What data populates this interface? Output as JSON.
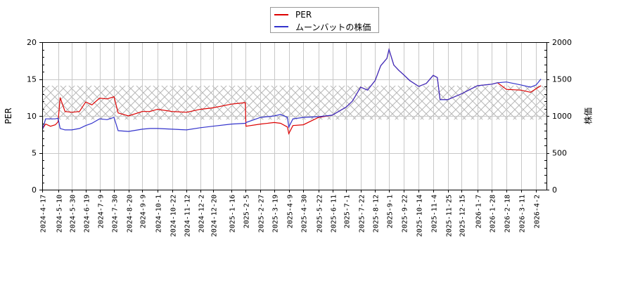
{
  "chart_data": {
    "type": "line",
    "title": "",
    "xlabel": "",
    "ylabel_left": "PER",
    "ylabel_right": "株価",
    "ylim_left": [
      0,
      20
    ],
    "ylim_right": [
      0,
      2000
    ],
    "yticks_left": [
      "0",
      "5",
      "10",
      "15",
      "20"
    ],
    "yticks_right": [
      "0",
      "500",
      "1000",
      "1500",
      "2000"
    ],
    "grid": true,
    "legend_position": "top-center",
    "shaded_band": {
      "left_axis_range": [
        9.5,
        14.1
      ],
      "pattern": "crosshatch",
      "color": "#c0c0c0"
    },
    "x_tick_labels": [
      "2024-4-17",
      "2024-5-10",
      "2024-5-30",
      "2024-6-19",
      "2024-7-9",
      "2024-7-30",
      "2024-8-20",
      "2024-9-9",
      "2024-10-1",
      "2024-10-22",
      "2024-11-12",
      "2024-12-2",
      "2024-12-20",
      "2025-1-16",
      "2025-2-5",
      "2025-2-27",
      "2025-3-19",
      "2025-4-9",
      "2025-4-30",
      "2025-5-22",
      "2025-6-11",
      "2025-7-1",
      "2025-7-22",
      "2025-8-12",
      "2025-9-1",
      "2025-9-22",
      "2025-10-14",
      "2025-11-4",
      "2025-11-25",
      "2025-12-15",
      "2026-1-7",
      "2026-1-28",
      "2026-2-18",
      "2026-3-11",
      "2026-4-2"
    ],
    "series": [
      {
        "name": "PER",
        "color": "#dd0000",
        "axis": "left",
        "x": [
          "2024-4-17",
          "2024-4-22",
          "2024-4-29",
          "2024-5-6",
          "2024-5-10",
          "2024-5-13",
          "2024-5-20",
          "2024-5-30",
          "2024-6-10",
          "2024-6-19",
          "2024-6-28",
          "2024-7-9",
          "2024-7-20",
          "2024-7-30",
          "2024-8-5",
          "2024-8-20",
          "2024-9-9",
          "2024-9-20",
          "2024-10-1",
          "2024-10-22",
          "2024-11-12",
          "2024-12-2",
          "2024-12-20",
          "2025-1-16",
          "2025-2-5",
          "2025-2-6",
          "2025-2-27",
          "2025-3-19",
          "2025-3-28",
          "2025-4-7",
          "2025-4-9",
          "2025-4-15",
          "2025-4-30",
          "2025-5-22",
          "2025-6-11",
          "2025-7-1",
          "2025-7-10",
          "2025-7-22",
          "2025-8-1",
          "2025-8-12",
          "2025-8-20",
          "2025-8-29",
          "2025-9-1",
          "2025-9-8",
          "2025-9-15",
          "2025-9-22",
          "2025-10-1",
          "2025-10-14",
          "2025-10-25",
          "2025-11-4",
          "2025-11-10",
          "2025-11-14",
          "2025-11-25",
          "2025-12-15",
          "2026-1-7",
          "2026-1-28",
          "2026-2-5",
          "2026-2-18",
          "2026-3-11",
          "2026-3-25",
          "2026-4-2",
          "2026-4-9"
        ],
        "values": [
          8.2,
          8.9,
          8.6,
          8.8,
          9.2,
          12.5,
          10.6,
          10.5,
          10.6,
          11.9,
          11.5,
          12.4,
          12.3,
          12.6,
          10.4,
          10.0,
          10.6,
          10.6,
          10.9,
          10.6,
          10.5,
          10.9,
          11.1,
          11.6,
          11.8,
          8.6,
          8.9,
          9.1,
          9.0,
          8.5,
          7.6,
          8.7,
          8.8,
          9.8,
          10.1,
          11.2,
          12.0,
          13.9,
          13.5,
          14.8,
          16.8,
          17.8,
          19.0,
          16.9,
          16.2,
          15.6,
          14.8,
          14.0,
          14.4,
          15.5,
          15.2,
          12.2,
          12.2,
          13.0,
          14.1,
          14.3,
          14.5,
          13.6,
          13.5,
          13.2,
          13.7,
          14.1
        ]
      },
      {
        "name": "ムーンバットの株価",
        "color": "#3333cc",
        "axis": "right",
        "x": [
          "2024-4-17",
          "2024-4-22",
          "2024-4-29",
          "2024-5-6",
          "2024-5-10",
          "2024-5-13",
          "2024-5-20",
          "2024-5-30",
          "2024-6-10",
          "2024-6-19",
          "2024-6-28",
          "2024-7-9",
          "2024-7-20",
          "2024-7-30",
          "2024-8-5",
          "2024-8-20",
          "2024-9-9",
          "2024-9-20",
          "2024-10-1",
          "2024-10-22",
          "2024-11-12",
          "2024-12-2",
          "2024-12-20",
          "2025-1-16",
          "2025-2-5",
          "2025-2-6",
          "2025-2-27",
          "2025-3-19",
          "2025-3-28",
          "2025-4-7",
          "2025-4-9",
          "2025-4-15",
          "2025-4-30",
          "2025-5-22",
          "2025-6-11",
          "2025-7-1",
          "2025-7-10",
          "2025-7-22",
          "2025-8-1",
          "2025-8-12",
          "2025-8-20",
          "2025-8-29",
          "2025-9-1",
          "2025-9-8",
          "2025-9-15",
          "2025-9-22",
          "2025-10-1",
          "2025-10-14",
          "2025-10-25",
          "2025-11-4",
          "2025-11-10",
          "2025-11-14",
          "2025-11-25",
          "2025-12-15",
          "2026-1-7",
          "2026-1-28",
          "2026-2-5",
          "2026-2-18",
          "2026-3-11",
          "2026-3-25",
          "2026-4-2",
          "2026-4-9"
        ],
        "values": [
          800,
          960,
          960,
          960,
          970,
          830,
          810,
          810,
          830,
          870,
          900,
          960,
          950,
          980,
          800,
          790,
          820,
          830,
          830,
          820,
          810,
          840,
          860,
          890,
          900,
          910,
          980,
          1000,
          1020,
          980,
          850,
          960,
          980,
          990,
          1010,
          1120,
          1200,
          1390,
          1350,
          1480,
          1680,
          1780,
          1900,
          1690,
          1620,
          1560,
          1480,
          1400,
          1440,
          1550,
          1520,
          1220,
          1220,
          1300,
          1410,
          1430,
          1450,
          1460,
          1420,
          1390,
          1420,
          1500
        ]
      }
    ]
  },
  "legend": {
    "items": [
      {
        "label": "PER",
        "color": "#dd0000"
      },
      {
        "label": "ムーンバットの株価",
        "color": "#3333cc"
      }
    ]
  },
  "axes": {
    "left_label": "PER",
    "right_label": "株価"
  }
}
